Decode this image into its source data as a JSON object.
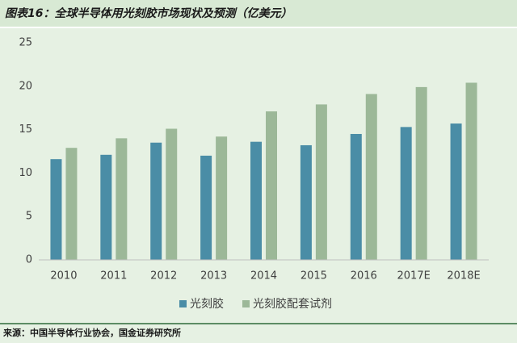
{
  "chart_data": {
    "type": "bar",
    "title": "图表16：全球半导体用光刻胶市场现状及预测（亿美元）",
    "source": "来源：中国半导体行业协会，国金证券研究所",
    "categories": [
      "2010",
      "2011",
      "2012",
      "2013",
      "2014",
      "2015",
      "2016",
      "2017E",
      "2018E"
    ],
    "series": [
      {
        "name": "光刻胶",
        "color": "#4a8da6",
        "values": [
          11.6,
          12.1,
          13.5,
          12.0,
          13.6,
          13.2,
          14.5,
          15.3,
          15.7
        ]
      },
      {
        "name": "光刻胶配套试剂",
        "color": "#9cb898",
        "values": [
          12.9,
          14.0,
          15.1,
          14.2,
          17.1,
          17.9,
          19.1,
          19.9,
          20.4
        ]
      }
    ],
    "ylim": [
      0,
      25
    ],
    "yticks": [
      0,
      5,
      10,
      15,
      20,
      25
    ],
    "grid": false,
    "legend": "bottom"
  }
}
